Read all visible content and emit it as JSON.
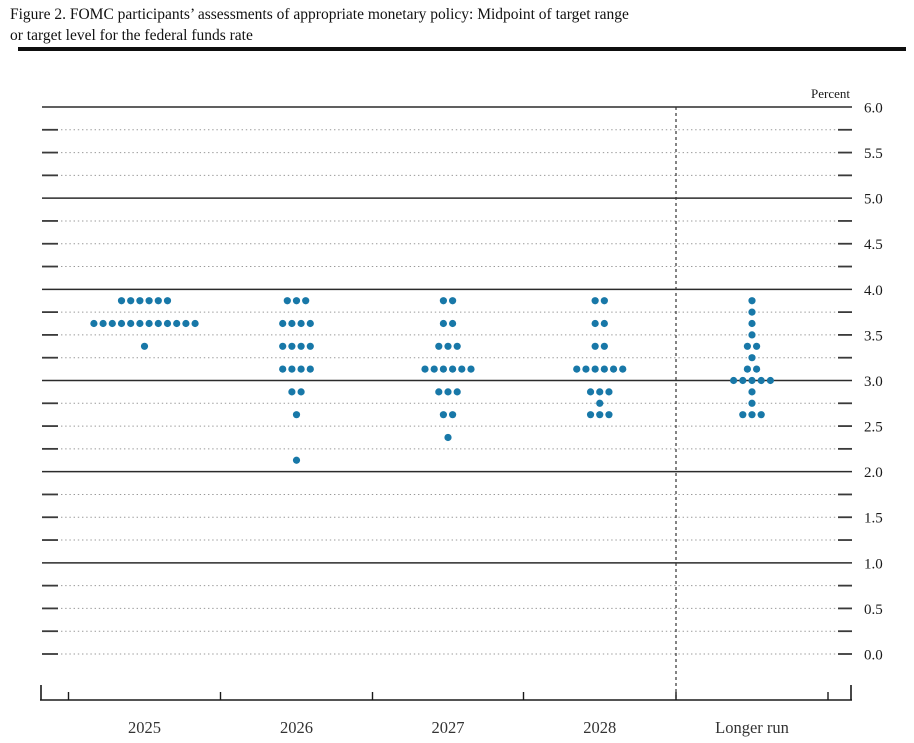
{
  "figure": {
    "title_line1": "Figure 2. FOMC participants’ assessments of appropriate monetary policy: Midpoint of target range",
    "title_line2": "or target level for the federal funds rate"
  },
  "chart_data": {
    "type": "scatter",
    "title": "Figure 2. FOMC participants’ assessments of appropriate monetary policy: Midpoint of target range or target level for the federal funds rate",
    "unit_label": "Percent",
    "ylim": [
      0.0,
      6.0
    ],
    "grid": true,
    "gridline_interval": 0.25,
    "solid_gridline_values": [
      1.0,
      2.0,
      3.0,
      4.0,
      5.0,
      6.0
    ],
    "y_tick_labels": [
      "6.0",
      "5.5",
      "5.0",
      "4.5",
      "4.0",
      "3.5",
      "3.0",
      "2.5",
      "2.0",
      "1.5",
      "1.0",
      "0.5",
      "0.0"
    ],
    "categories": [
      "2025",
      "2026",
      "2027",
      "2028",
      "Longer run"
    ],
    "legend_position": "none",
    "dot_color": "#1878a8",
    "series": [
      {
        "name": "2025",
        "dots": [
          {
            "rate": 3.875,
            "count": 6
          },
          {
            "rate": 3.625,
            "count": 12
          },
          {
            "rate": 3.375,
            "count": 1
          }
        ]
      },
      {
        "name": "2026",
        "dots": [
          {
            "rate": 3.875,
            "count": 3
          },
          {
            "rate": 3.625,
            "count": 4
          },
          {
            "rate": 3.375,
            "count": 4
          },
          {
            "rate": 3.125,
            "count": 4
          },
          {
            "rate": 2.875,
            "count": 2
          },
          {
            "rate": 2.625,
            "count": 1
          },
          {
            "rate": 2.125,
            "count": 1
          }
        ]
      },
      {
        "name": "2027",
        "dots": [
          {
            "rate": 3.875,
            "count": 2
          },
          {
            "rate": 3.625,
            "count": 2
          },
          {
            "rate": 3.375,
            "count": 3
          },
          {
            "rate": 3.125,
            "count": 6
          },
          {
            "rate": 2.875,
            "count": 3
          },
          {
            "rate": 2.625,
            "count": 2
          },
          {
            "rate": 2.375,
            "count": 1
          }
        ]
      },
      {
        "name": "2028",
        "dots": [
          {
            "rate": 3.875,
            "count": 2
          },
          {
            "rate": 3.625,
            "count": 2
          },
          {
            "rate": 3.375,
            "count": 2
          },
          {
            "rate": 3.125,
            "count": 6
          },
          {
            "rate": 2.875,
            "count": 3
          },
          {
            "rate": 2.75,
            "count": 1
          },
          {
            "rate": 2.625,
            "count": 3
          }
        ]
      },
      {
        "name": "Longer run",
        "dots": [
          {
            "rate": 3.875,
            "count": 1
          },
          {
            "rate": 3.75,
            "count": 1
          },
          {
            "rate": 3.625,
            "count": 1
          },
          {
            "rate": 3.5,
            "count": 1
          },
          {
            "rate": 3.375,
            "count": 2
          },
          {
            "rate": 3.25,
            "count": 1
          },
          {
            "rate": 3.125,
            "count": 2
          },
          {
            "rate": 3.0,
            "count": 5
          },
          {
            "rate": 2.875,
            "count": 1
          },
          {
            "rate": 2.75,
            "count": 1
          },
          {
            "rate": 2.625,
            "count": 3
          }
        ]
      }
    ]
  }
}
